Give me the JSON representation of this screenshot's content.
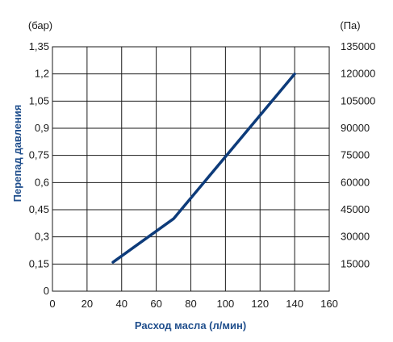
{
  "chart_data": {
    "type": "line",
    "xlabel": "Расход масла (л/мин)",
    "ylabel": "Перепад давления",
    "y_left_unit": "(бар)",
    "y_right_unit": "(Па)",
    "xlim": [
      0,
      160
    ],
    "ylim": [
      0,
      1.35
    ],
    "grid": true,
    "x_ticks": [
      "0",
      "20",
      "40",
      "60",
      "80",
      "100",
      "120",
      "140",
      "160"
    ],
    "y_left_ticks": [
      "0",
      "0,15",
      "0,3",
      "0,45",
      "0,6",
      "0,75",
      "0,9",
      "1,05",
      "1,2",
      "1,35"
    ],
    "y_right_ticks": [
      "15000",
      "30000",
      "45000",
      "60000",
      "75000",
      "90000",
      "105000",
      "120000",
      "135000"
    ],
    "series": [
      {
        "color": "#0d3b7a",
        "x": [
          35,
          70,
          140
        ],
        "y": [
          0.16,
          0.4,
          1.2
        ]
      }
    ]
  }
}
